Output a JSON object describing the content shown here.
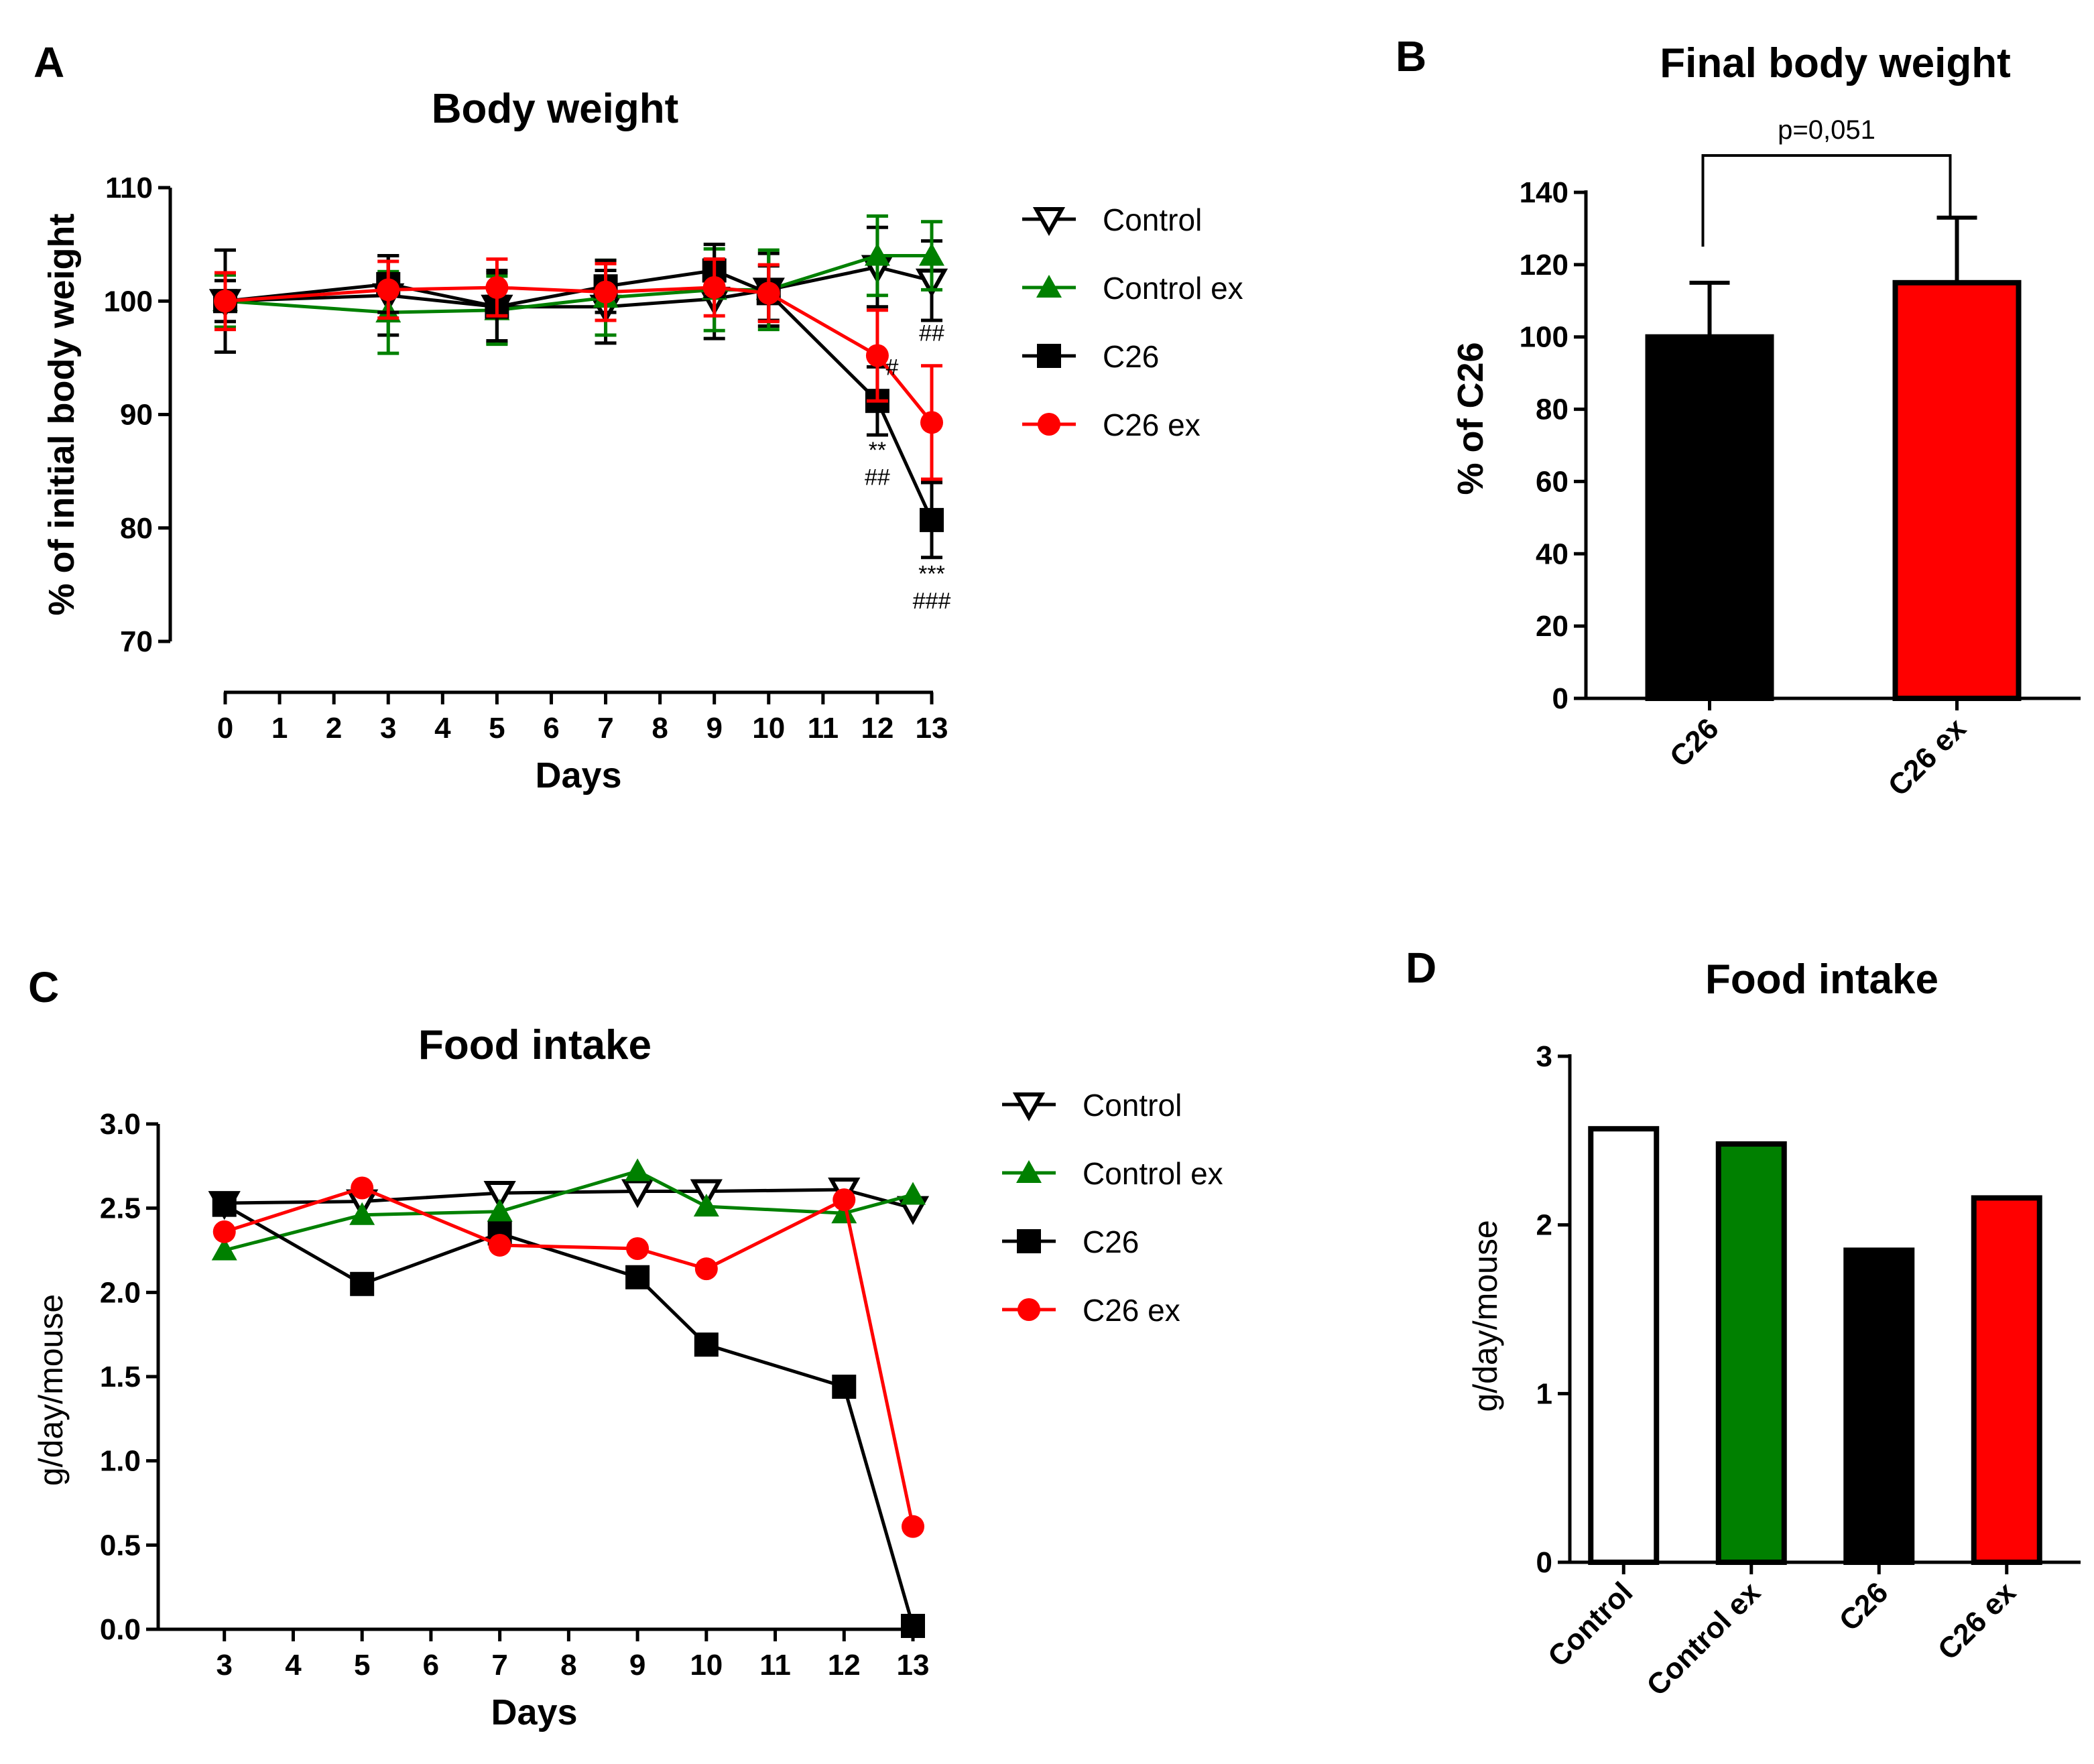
{
  "chart_data": [
    {
      "panel": "A",
      "type": "line",
      "title": "Body weight",
      "xlabel": "Days",
      "ylabel": "% of initial body weight",
      "xlim": [
        0,
        13
      ],
      "ylim": [
        70,
        110
      ],
      "xticks": [
        "0",
        "1",
        "2",
        "3",
        "4",
        "5",
        "6",
        "7",
        "8",
        "9",
        "10",
        "11",
        "12",
        "13"
      ],
      "yticks": [
        "70",
        "80",
        "90",
        "100",
        "110"
      ],
      "x": [
        0,
        3,
        5,
        7,
        9,
        10,
        12,
        13
      ],
      "series": [
        {
          "name": "Control",
          "color": "#000000",
          "marker": "triangle-down-open",
          "values": [
            100,
            100.5,
            99.5,
            99.5,
            100.2,
            101,
            103,
            101.8
          ],
          "errors": [
            4.5,
            3.5,
            3.2,
            3.2,
            3.5,
            3.2,
            3.5,
            3.5
          ]
        },
        {
          "name": "Control ex",
          "color": "#008000",
          "marker": "triangle-up",
          "values": [
            100,
            99,
            99.2,
            100.3,
            101,
            101,
            104,
            104
          ],
          "errors": [
            2.3,
            3.6,
            3,
            3.3,
            3.6,
            3.5,
            3.5,
            3
          ]
        },
        {
          "name": "C26",
          "color": "#000000",
          "marker": "square",
          "values": [
            100,
            101.5,
            99.5,
            101.3,
            102.7,
            100.7,
            91.2,
            80.7
          ],
          "errors": [
            1.8,
            2.5,
            3,
            2.3,
            2.3,
            2.4,
            3,
            3.3
          ]
        },
        {
          "name": "C26 ex",
          "color": "#ff0000",
          "marker": "circle",
          "values": [
            100,
            101,
            101.2,
            100.8,
            101.2,
            100.7,
            95.2,
            89.3
          ],
          "errors": [
            2.5,
            2.5,
            2.5,
            2.5,
            2.5,
            2.5,
            4,
            5
          ]
        }
      ],
      "annotations": [
        {
          "x": 12,
          "y": 93.5,
          "text": "#"
        },
        {
          "x": 13,
          "y": 96.5,
          "text": "##"
        },
        {
          "x": 12,
          "y": 86.2,
          "text": "**"
        },
        {
          "x": 12,
          "y": 83.8,
          "text": "##"
        },
        {
          "x": 13,
          "y": 75.3,
          "text": "***"
        },
        {
          "x": 13,
          "y": 72.9,
          "text": "###"
        }
      ],
      "legend": "right"
    },
    {
      "panel": "B",
      "type": "bar",
      "title": "Final body weight",
      "xlabel": "",
      "ylabel": "% of C26",
      "ylim": [
        0,
        140
      ],
      "yticks": [
        "0",
        "20",
        "40",
        "60",
        "80",
        "100",
        "120",
        "140"
      ],
      "categories": [
        "C26",
        "C26 ex"
      ],
      "values": [
        100,
        115
      ],
      "errors": [
        15,
        18
      ],
      "colors": [
        "#000000",
        "#ff0000"
      ],
      "significance": {
        "from": 0,
        "to": 1,
        "label": "p=0,051"
      }
    },
    {
      "panel": "C",
      "type": "line",
      "title": "Food intake",
      "xlabel": "Days",
      "ylabel": "g/day/mouse",
      "xlim": [
        2,
        13
      ],
      "ylim": [
        0,
        3
      ],
      "xticks": [
        "3",
        "4",
        "5",
        "6",
        "7",
        "8",
        "9",
        "10",
        "11",
        "12",
        "13"
      ],
      "yticks": [
        "0.0",
        "0.5",
        "1.0",
        "1.5",
        "2.0",
        "2.5",
        "3.0"
      ],
      "x": [
        3,
        5,
        7,
        9,
        10,
        12,
        13
      ],
      "series": [
        {
          "name": "Control",
          "color": "#000000",
          "marker": "triangle-down-open",
          "values": [
            2.53,
            2.54,
            2.59,
            2.6,
            2.6,
            2.61,
            2.5
          ]
        },
        {
          "name": "Control ex",
          "color": "#008000",
          "marker": "triangle-up",
          "values": [
            2.25,
            2.46,
            2.48,
            2.72,
            2.51,
            2.47,
            2.58
          ]
        },
        {
          "name": "C26",
          "color": "#000000",
          "marker": "square",
          "values": [
            2.52,
            2.05,
            2.35,
            2.09,
            1.69,
            1.44,
            0.02
          ]
        },
        {
          "name": "C26 ex",
          "color": "#ff0000",
          "marker": "circle",
          "values": [
            2.36,
            2.62,
            2.28,
            2.26,
            2.14,
            2.55,
            0.61
          ]
        }
      ],
      "legend": "right"
    },
    {
      "panel": "D",
      "type": "bar",
      "title": "Food intake",
      "xlabel": "",
      "ylabel": "g/day/mouse",
      "ylim": [
        0,
        3
      ],
      "yticks": [
        "0",
        "1",
        "2",
        "3"
      ],
      "categories": [
        "Control",
        "Control ex",
        "C26",
        "C26 ex"
      ],
      "values": [
        2.57,
        2.48,
        1.85,
        2.16
      ],
      "colors": [
        "#ffffff",
        "#008000",
        "#000000",
        "#ff0000"
      ]
    }
  ]
}
